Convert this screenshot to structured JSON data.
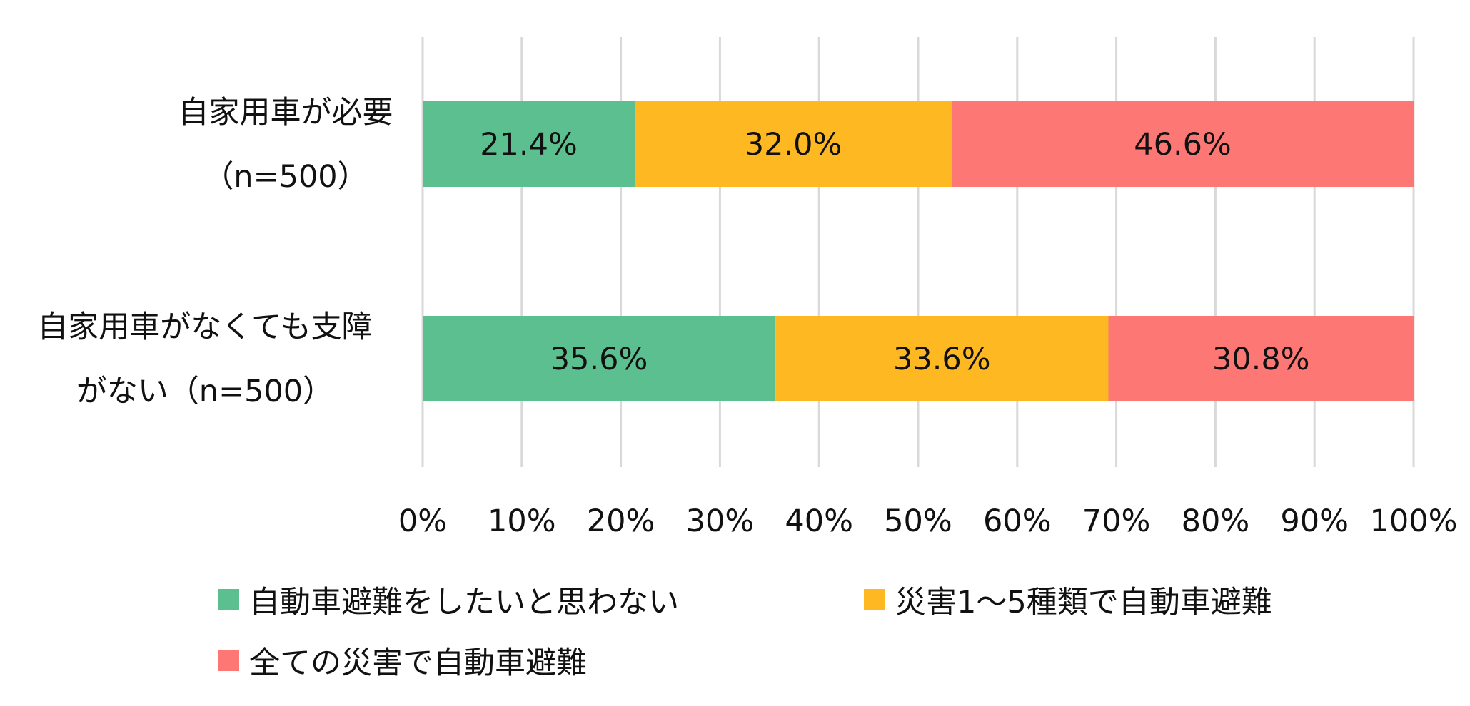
{
  "chart_data": {
    "type": "bar",
    "orientation": "horizontal",
    "stacked": true,
    "categories": [
      [
        "自家用車が必要",
        "（n=500）"
      ],
      [
        "自家用車がなくても支障",
        "がない（n=500）"
      ]
    ],
    "series": [
      {
        "name": "自動車避難をしたいと思わない",
        "color": "#5bbf8f",
        "values": [
          21.4,
          35.6
        ]
      },
      {
        "name": "災害1～5種類で自動車避難",
        "color": "#fdb822",
        "values": [
          32.0,
          33.6
        ]
      },
      {
        "name": "全ての災害で自動車避難",
        "color": "#fd7775",
        "values": [
          46.6,
          30.8
        ]
      }
    ],
    "data_labels": [
      [
        "21.4%",
        "35.6%"
      ],
      [
        "32.0%",
        "33.6%"
      ],
      [
        "46.6%",
        "30.8%"
      ]
    ],
    "xlim": [
      0,
      100
    ],
    "x_ticks": [
      0,
      10,
      20,
      30,
      40,
      50,
      60,
      70,
      80,
      90,
      100
    ],
    "x_tick_labels": [
      "0%",
      "10%",
      "20%",
      "30%",
      "40%",
      "50%",
      "60%",
      "70%",
      "80%",
      "90%",
      "100%"
    ],
    "grid": true,
    "legend_position": "bottom"
  }
}
